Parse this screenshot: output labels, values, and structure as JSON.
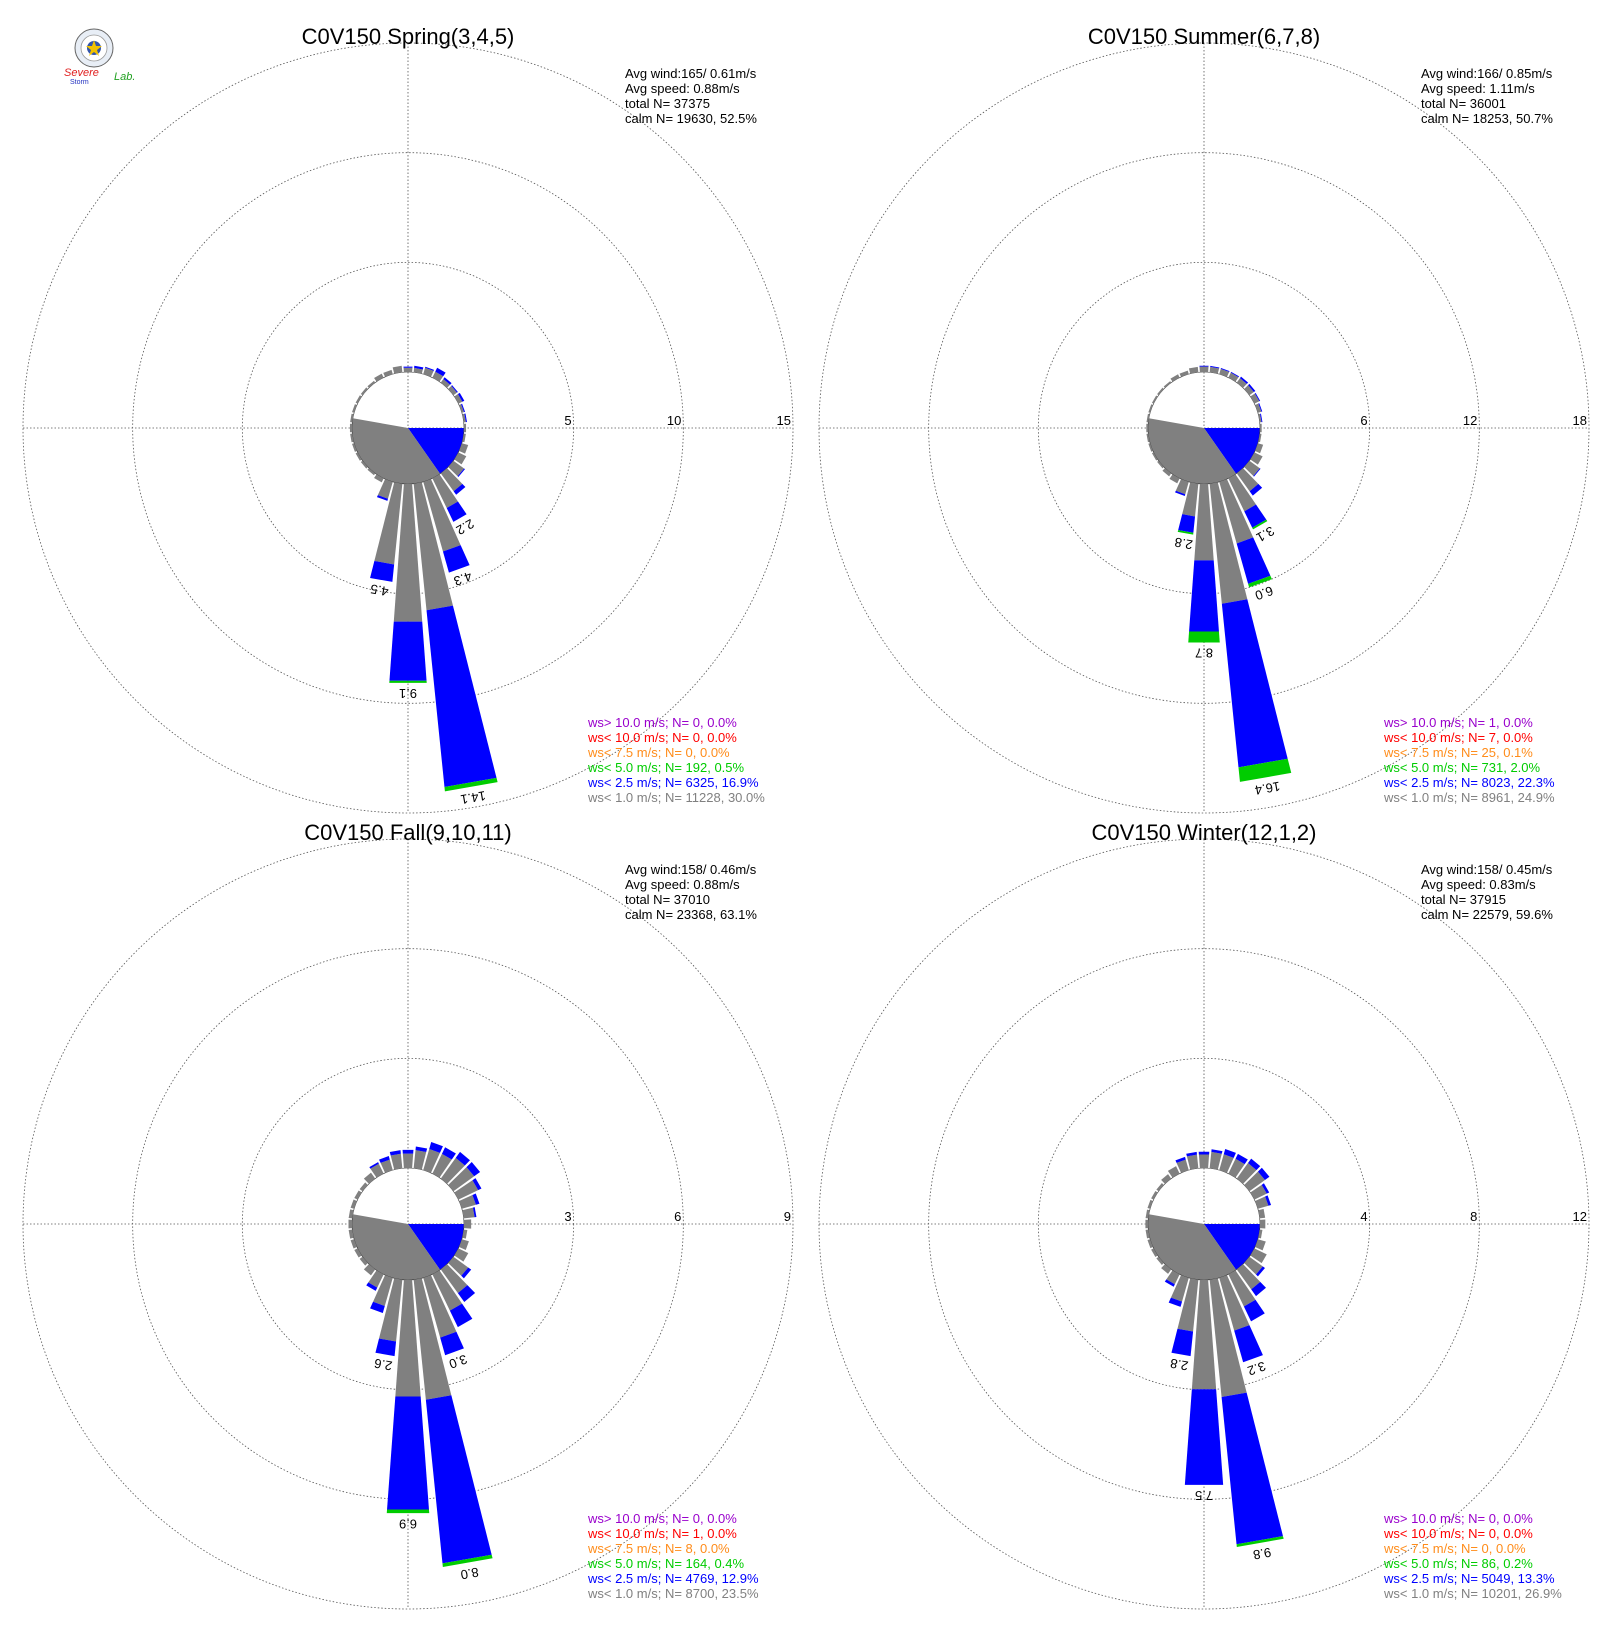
{
  "logo": {
    "text_top": "Severe",
    "text_bottom": "Storm",
    "text_lab": "Lab."
  },
  "colors": {
    "c1": "#808080",
    "c2": "#0000ff",
    "c3": "#00cc00",
    "c4": "#ff8c1a",
    "c5": "#ff0000",
    "c6": "#9900cc"
  },
  "chart_data": [
    {
      "type": "wind-rose",
      "title": "C0V150 Spring(3,4,5)",
      "rings": [
        5,
        10,
        15
      ],
      "ring_labels": [
        "5",
        "10",
        "15"
      ],
      "stats": [
        "Avg wind:165/ 0.61m/s",
        "Avg speed: 0.88m/s",
        "total N=       37375",
        "calm N=  19630,  52.5%"
      ],
      "legend": [
        {
          "text": "ws> 10.0 m/s; N=     0,  0.0%",
          "color_key": "c6"
        },
        {
          "text": "ws< 10.0 m/s; N=     0,  0.0%",
          "color_key": "c5"
        },
        {
          "text": "ws<  7.5 m/s; N=     0,  0.0%",
          "color_key": "c4"
        },
        {
          "text": "ws<  5.0 m/s; N=   192,  0.5%",
          "color_key": "c3"
        },
        {
          "text": "ws<  2.5 m/s; N=  6325, 16.9%",
          "color_key": "c2"
        },
        {
          "text": "ws<  1.0 m/s; N= 11228, 30.0%",
          "color_key": "c1"
        }
      ],
      "sectors": [
        {
          "dir": 0,
          "c1": 0.2,
          "c2": 0.05
        },
        {
          "dir": 10,
          "c1": 0.2,
          "c2": 0.1
        },
        {
          "dir": 20,
          "c1": 0.3,
          "c2": 0.05
        },
        {
          "dir": 30,
          "c1": 0.3,
          "c2": 0.2
        },
        {
          "dir": 40,
          "c1": 0.2,
          "c2": 0.1
        },
        {
          "dir": 50,
          "c1": 0.2,
          "c2": 0.05
        },
        {
          "dir": 60,
          "c1": 0.2,
          "c2": 0.1
        },
        {
          "dir": 70,
          "c1": 0.1,
          "c2": 0.05
        },
        {
          "dir": 80,
          "c1": 0.1,
          "c2": 0.05
        },
        {
          "dir": 90,
          "c1": 0.1
        },
        {
          "dir": 100,
          "c1": 0.1
        },
        {
          "dir": 110,
          "c1": 0.3
        },
        {
          "dir": 120,
          "c1": 0.4
        },
        {
          "dir": 130,
          "c1": 0.6,
          "c2": 0.05
        },
        {
          "dir": 140,
          "c1": 1.0,
          "c2": 0.2
        },
        {
          "dir": 150,
          "c1": 1.5,
          "c2": 0.7
        },
        {
          "dir": 160,
          "c1": 3.3,
          "c2": 1.0
        },
        {
          "dir": 170,
          "c1": 5.8,
          "c2": 8.1,
          "c3": 0.2,
          "label": "14.1"
        },
        {
          "dir": 180,
          "c1": 6.3,
          "c2": 2.7,
          "c3": 0.1,
          "label": "9.1"
        },
        {
          "dir": 190,
          "c1": 3.7,
          "c2": 0.8,
          "label": "4.5"
        },
        {
          "dir": 200,
          "c1": 0.8,
          "c2": 0.1
        },
        {
          "dir": 210,
          "c1": 0.2
        },
        {
          "dir": 220,
          "c1": 0.1
        },
        {
          "dir": 230,
          "c1": 0.1
        },
        {
          "dir": 240,
          "c1": 0.1
        },
        {
          "dir": 250,
          "c1": 0.1
        },
        {
          "dir": 260,
          "c1": 0.1
        },
        {
          "dir": 270,
          "c1": 0.1
        },
        {
          "dir": 280,
          "c1": 0.1
        },
        {
          "dir": 290,
          "c1": 0.1
        },
        {
          "dir": 300,
          "c1": 0.1
        },
        {
          "dir": 310,
          "c1": 0.1
        },
        {
          "dir": 320,
          "c1": 0.1
        },
        {
          "dir": 330,
          "c1": 0.2
        },
        {
          "dir": 340,
          "c1": 0.2
        },
        {
          "dir": 350,
          "c1": 0.3
        }
      ],
      "label_overrides": {
        "150": "2.2",
        "160": "4.3"
      }
    },
    {
      "type": "wind-rose",
      "title": "C0V150 Summer(6,7,8)",
      "rings": [
        6,
        12,
        18
      ],
      "ring_labels": [
        "6",
        "12",
        "18"
      ],
      "stats": [
        "Avg wind:166/ 0.85m/s",
        "Avg speed: 1.11m/s",
        "total N=       36001",
        "calm N=  18253,  50.7%"
      ],
      "legend": [
        {
          "text": "ws> 10.0 m/s; N=     1,  0.0%",
          "color_key": "c6"
        },
        {
          "text": "ws< 10.0 m/s; N=     7,  0.0%",
          "color_key": "c5"
        },
        {
          "text": "ws<  7.5 m/s; N=    25,  0.1%",
          "color_key": "c4"
        },
        {
          "text": "ws<  5.0 m/s; N=   731,  2.0%",
          "color_key": "c3"
        },
        {
          "text": "ws<  2.5 m/s; N=  8023, 22.3%",
          "color_key": "c2"
        },
        {
          "text": "ws<  1.0 m/s; N=  8961, 24.9%",
          "color_key": "c1"
        }
      ],
      "sectors": [
        {
          "dir": 0,
          "c1": 0.3,
          "c2": 0.05
        },
        {
          "dir": 10,
          "c1": 0.3,
          "c2": 0.05
        },
        {
          "dir": 20,
          "c1": 0.3,
          "c2": 0.05
        },
        {
          "dir": 30,
          "c1": 0.3,
          "c2": 0.05
        },
        {
          "dir": 40,
          "c1": 0.3,
          "c2": 0.1
        },
        {
          "dir": 50,
          "c1": 0.3,
          "c2": 0.1
        },
        {
          "dir": 60,
          "c1": 0.3,
          "c2": 0.05
        },
        {
          "dir": 70,
          "c1": 0.2,
          "c2": 0.05
        },
        {
          "dir": 80,
          "c1": 0.1,
          "c2": 0.05
        },
        {
          "dir": 90,
          "c1": 0.1
        },
        {
          "dir": 100,
          "c1": 0.1
        },
        {
          "dir": 110,
          "c1": 0.3
        },
        {
          "dir": 120,
          "c1": 0.5
        },
        {
          "dir": 130,
          "c1": 0.7,
          "c2": 0.05
        },
        {
          "dir": 140,
          "c1": 1.2,
          "c2": 0.3
        },
        {
          "dir": 150,
          "c1": 2.0,
          "c2": 1.0,
          "c3": 0.1,
          "label": "3.1"
        },
        {
          "dir": 160,
          "c1": 3.5,
          "c2": 2.3,
          "c3": 0.2,
          "label": "6.0"
        },
        {
          "dir": 170,
          "c1": 6.6,
          "c2": 9.0,
          "c3": 0.8,
          "label": "16.4"
        },
        {
          "dir": 180,
          "c1": 4.2,
          "c2": 3.9,
          "c3": 0.6,
          "label": "8.7"
        },
        {
          "dir": 190,
          "c1": 1.8,
          "c2": 0.9,
          "c3": 0.1,
          "label": "2.8"
        },
        {
          "dir": 200,
          "c1": 0.7,
          "c2": 0.1
        },
        {
          "dir": 210,
          "c1": 0.3
        },
        {
          "dir": 220,
          "c1": 0.2
        },
        {
          "dir": 230,
          "c1": 0.1
        },
        {
          "dir": 240,
          "c1": 0.1
        },
        {
          "dir": 250,
          "c1": 0.1
        },
        {
          "dir": 260,
          "c1": 0.1
        },
        {
          "dir": 270,
          "c1": 0.1
        },
        {
          "dir": 280,
          "c1": 0.1
        },
        {
          "dir": 290,
          "c1": 0.1
        },
        {
          "dir": 300,
          "c1": 0.1
        },
        {
          "dir": 310,
          "c1": 0.1
        },
        {
          "dir": 320,
          "c1": 0.1
        },
        {
          "dir": 330,
          "c1": 0.2
        },
        {
          "dir": 340,
          "c1": 0.2
        },
        {
          "dir": 350,
          "c1": 0.3
        }
      ],
      "label_overrides": {}
    },
    {
      "type": "wind-rose",
      "title": "C0V150 Fall(9,10,11)",
      "rings": [
        3,
        6,
        9
      ],
      "ring_labels": [
        "3",
        "6",
        "9"
      ],
      "stats": [
        "Avg wind:158/ 0.46m/s",
        "Avg speed: 0.88m/s",
        "total N=       37010",
        "calm N=  23368,  63.1%"
      ],
      "legend": [
        {
          "text": "ws> 10.0 m/s; N=     0,  0.0%",
          "color_key": "c6"
        },
        {
          "text": "ws< 10.0 m/s; N=     1,  0.0%",
          "color_key": "c5"
        },
        {
          "text": "ws<  7.5 m/s; N=     8,  0.0%",
          "color_key": "c4"
        },
        {
          "text": "ws<  5.0 m/s; N=   164,  0.4%",
          "color_key": "c3"
        },
        {
          "text": "ws<  2.5 m/s; N=  4769, 12.9%",
          "color_key": "c2"
        },
        {
          "text": "ws<  1.0 m/s; N=  8700, 23.5%",
          "color_key": "c1"
        }
      ],
      "sectors": [
        {
          "dir": 0,
          "c1": 0.4,
          "c2": 0.1
        },
        {
          "dir": 10,
          "c1": 0.5,
          "c2": 0.1
        },
        {
          "dir": 20,
          "c1": 0.6,
          "c2": 0.2
        },
        {
          "dir": 30,
          "c1": 0.6,
          "c2": 0.2
        },
        {
          "dir": 40,
          "c1": 0.7,
          "c2": 0.2
        },
        {
          "dir": 50,
          "c1": 0.7,
          "c2": 0.2
        },
        {
          "dir": 60,
          "c1": 0.6,
          "c2": 0.1
        },
        {
          "dir": 70,
          "c1": 0.4,
          "c2": 0.1
        },
        {
          "dir": 80,
          "c1": 0.3,
          "c2": 0.05
        },
        {
          "dir": 90,
          "c1": 0.2
        },
        {
          "dir": 100,
          "c1": 0.1
        },
        {
          "dir": 110,
          "c1": 0.2
        },
        {
          "dir": 120,
          "c1": 0.3
        },
        {
          "dir": 130,
          "c1": 0.5,
          "c2": 0.1
        },
        {
          "dir": 140,
          "c1": 0.8,
          "c2": 0.3
        },
        {
          "dir": 150,
          "c1": 1.1,
          "c2": 0.5
        },
        {
          "dir": 160,
          "c1": 1.7,
          "c2": 0.5,
          "label": "3.0"
        },
        {
          "dir": 170,
          "c1": 3.3,
          "c2": 4.5,
          "c3": 0.1,
          "label": "8.0"
        },
        {
          "dir": 180,
          "c1": 3.2,
          "c2": 3.1,
          "c3": 0.1,
          "label": "6.9"
        },
        {
          "dir": 190,
          "c1": 1.7,
          "c2": 0.4,
          "label": "2.6"
        },
        {
          "dir": 200,
          "c1": 0.8,
          "c2": 0.2
        },
        {
          "dir": 210,
          "c1": 0.4,
          "c2": 0.1
        },
        {
          "dir": 220,
          "c1": 0.2
        },
        {
          "dir": 230,
          "c1": 0.1
        },
        {
          "dir": 240,
          "c1": 0.1
        },
        {
          "dir": 250,
          "c1": 0.1
        },
        {
          "dir": 260,
          "c1": 0.1
        },
        {
          "dir": 270,
          "c1": 0.1
        },
        {
          "dir": 280,
          "c1": 0.1
        },
        {
          "dir": 290,
          "c1": 0.1
        },
        {
          "dir": 300,
          "c1": 0.1
        },
        {
          "dir": 310,
          "c1": 0.1
        },
        {
          "dir": 320,
          "c1": 0.2
        },
        {
          "dir": 330,
          "c1": 0.3,
          "c2": 0.05
        },
        {
          "dir": 340,
          "c1": 0.3,
          "c2": 0.1
        },
        {
          "dir": 350,
          "c1": 0.4,
          "c2": 0.1
        }
      ],
      "label_overrides": {}
    },
    {
      "type": "wind-rose",
      "title": "C0V150 Winter(12,1,2)",
      "rings": [
        4,
        8,
        12
      ],
      "ring_labels": [
        "4",
        "8",
        "12"
      ],
      "stats": [
        "Avg wind:158/ 0.45m/s",
        "Avg speed: 0.83m/s",
        "total N=       37915",
        "calm N=  22579,  59.6%"
      ],
      "legend": [
        {
          "text": "ws> 10.0 m/s; N=     0,  0.0%",
          "color_key": "c6"
        },
        {
          "text": "ws< 10.0 m/s; N=     0,  0.0%",
          "color_key": "c5"
        },
        {
          "text": "ws<  7.5 m/s; N=     0,  0.0%",
          "color_key": "c4"
        },
        {
          "text": "ws<  5.0 m/s; N=    86,  0.2%",
          "color_key": "c3"
        },
        {
          "text": "ws<  2.5 m/s; N=  5049, 13.3%",
          "color_key": "c2"
        },
        {
          "text": "ws<  1.0 m/s; N= 10201, 26.9%",
          "color_key": "c1"
        }
      ],
      "sectors": [
        {
          "dir": 0,
          "c1": 0.5,
          "c2": 0.1
        },
        {
          "dir": 10,
          "c1": 0.6,
          "c2": 0.1
        },
        {
          "dir": 20,
          "c1": 0.6,
          "c2": 0.2
        },
        {
          "dir": 30,
          "c1": 0.6,
          "c2": 0.2
        },
        {
          "dir": 40,
          "c1": 0.7,
          "c2": 0.2
        },
        {
          "dir": 50,
          "c1": 0.7,
          "c2": 0.2
        },
        {
          "dir": 60,
          "c1": 0.5,
          "c2": 0.1
        },
        {
          "dir": 70,
          "c1": 0.4,
          "c2": 0.1
        },
        {
          "dir": 80,
          "c1": 0.2
        },
        {
          "dir": 90,
          "c1": 0.2
        },
        {
          "dir": 100,
          "c1": 0.1
        },
        {
          "dir": 110,
          "c1": 0.3
        },
        {
          "dir": 120,
          "c1": 0.5
        },
        {
          "dir": 130,
          "c1": 0.6,
          "c2": 0.1
        },
        {
          "dir": 140,
          "c1": 0.9,
          "c2": 0.3
        },
        {
          "dir": 150,
          "c1": 1.3,
          "c2": 0.6
        },
        {
          "dir": 160,
          "c1": 2.0,
          "c2": 1.2,
          "label": "3.2"
        },
        {
          "dir": 170,
          "c1": 4.3,
          "c2": 5.4,
          "c3": 0.1,
          "label": "9.8"
        },
        {
          "dir": 180,
          "c1": 4.0,
          "c2": 3.5,
          "label": "7.5"
        },
        {
          "dir": 190,
          "c1": 1.9,
          "c2": 0.9,
          "label": "2.8"
        },
        {
          "dir": 200,
          "c1": 0.9,
          "c2": 0.2
        },
        {
          "dir": 210,
          "c1": 0.4,
          "c2": 0.1
        },
        {
          "dir": 220,
          "c1": 0.2
        },
        {
          "dir": 230,
          "c1": 0.1
        },
        {
          "dir": 240,
          "c1": 0.1
        },
        {
          "dir": 250,
          "c1": 0.1
        },
        {
          "dir": 260,
          "c1": 0.1
        },
        {
          "dir": 270,
          "c1": 0.1
        },
        {
          "dir": 280,
          "c1": 0.1
        },
        {
          "dir": 290,
          "c1": 0.1
        },
        {
          "dir": 300,
          "c1": 0.1
        },
        {
          "dir": 310,
          "c1": 0.1
        },
        {
          "dir": 320,
          "c1": 0.2
        },
        {
          "dir": 330,
          "c1": 0.3
        },
        {
          "dir": 340,
          "c1": 0.4,
          "c2": 0.1
        },
        {
          "dir": 350,
          "c1": 0.5,
          "c2": 0.1
        }
      ],
      "label_overrides": {}
    }
  ]
}
